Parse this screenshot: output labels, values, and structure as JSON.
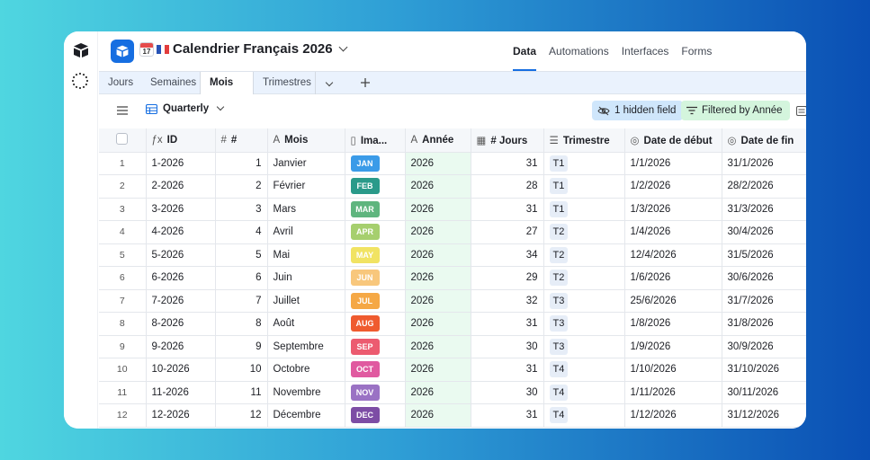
{
  "app": {
    "title": "Calendrier Français 2026",
    "cal_emoji_text": "17",
    "nav": [
      "Data",
      "Automations",
      "Interfaces",
      "Forms"
    ],
    "active_nav": "Data"
  },
  "tabs": [
    {
      "label": "Jours"
    },
    {
      "label": "Semaines"
    },
    {
      "label": "Mois"
    },
    {
      "label": "Trimestres"
    }
  ],
  "active_tab": "Mois",
  "toolbar": {
    "view_name": "Quarterly",
    "hidden_fields": "1 hidden field",
    "filter": "Filtered by Année"
  },
  "columns": [
    "ID",
    "#",
    "Mois",
    "Ima...",
    "Année",
    "# Jours",
    "Trimestre",
    "Date de début",
    "Date de fin"
  ],
  "rows": [
    {
      "n": "1",
      "id": "1-2026",
      "num": "1",
      "mois": "Janvier",
      "tag": "JAN",
      "annee": "2026",
      "jours": "31",
      "tri": "T1",
      "debut": "1/1/2026",
      "fin": "31/1/2026"
    },
    {
      "n": "2",
      "id": "2-2026",
      "num": "2",
      "mois": "Février",
      "tag": "FEB",
      "annee": "2026",
      "jours": "28",
      "tri": "T1",
      "debut": "1/2/2026",
      "fin": "28/2/2026"
    },
    {
      "n": "3",
      "id": "3-2026",
      "num": "3",
      "mois": "Mars",
      "tag": "MAR",
      "annee": "2026",
      "jours": "31",
      "tri": "T1",
      "debut": "1/3/2026",
      "fin": "31/3/2026"
    },
    {
      "n": "4",
      "id": "4-2026",
      "num": "4",
      "mois": "Avril",
      "tag": "APR",
      "annee": "2026",
      "jours": "27",
      "tri": "T2",
      "debut": "1/4/2026",
      "fin": "30/4/2026"
    },
    {
      "n": "5",
      "id": "5-2026",
      "num": "5",
      "mois": "Mai",
      "tag": "MAY",
      "annee": "2026",
      "jours": "34",
      "tri": "T2",
      "debut": "12/4/2026",
      "fin": "31/5/2026"
    },
    {
      "n": "6",
      "id": "6-2026",
      "num": "6",
      "mois": "Juin",
      "tag": "JUN",
      "annee": "2026",
      "jours": "29",
      "tri": "T2",
      "debut": "1/6/2026",
      "fin": "30/6/2026"
    },
    {
      "n": "7",
      "id": "7-2026",
      "num": "7",
      "mois": "Juillet",
      "tag": "JUL",
      "annee": "2026",
      "jours": "32",
      "tri": "T3",
      "debut": "25/6/2026",
      "fin": "31/7/2026"
    },
    {
      "n": "8",
      "id": "8-2026",
      "num": "8",
      "mois": "Août",
      "tag": "AUG",
      "annee": "2026",
      "jours": "31",
      "tri": "T3",
      "debut": "1/8/2026",
      "fin": "31/8/2026"
    },
    {
      "n": "9",
      "id": "9-2026",
      "num": "9",
      "mois": "Septembre",
      "tag": "SEP",
      "annee": "2026",
      "jours": "30",
      "tri": "T3",
      "debut": "1/9/2026",
      "fin": "30/9/2026"
    },
    {
      "n": "10",
      "id": "10-2026",
      "num": "10",
      "mois": "Octobre",
      "tag": "OCT",
      "annee": "2026",
      "jours": "31",
      "tri": "T4",
      "debut": "1/10/2026",
      "fin": "31/10/2026"
    },
    {
      "n": "11",
      "id": "11-2026",
      "num": "11",
      "mois": "Novembre",
      "tag": "NOV",
      "annee": "2026",
      "jours": "30",
      "tri": "T4",
      "debut": "1/11/2026",
      "fin": "30/11/2026"
    },
    {
      "n": "12",
      "id": "12-2026",
      "num": "12",
      "mois": "Décembre",
      "tag": "DEC",
      "annee": "2026",
      "jours": "31",
      "tri": "T4",
      "debut": "1/12/2026",
      "fin": "31/12/2026"
    }
  ],
  "colors": {
    "accent": "#166ee1",
    "tab_bar": "#eaf2fd",
    "hidden_pill": "#cfe6fb",
    "filter_pill": "#d4f5dd",
    "annee_cell": "#eafaf0",
    "tags": {
      "JAN": "#3b9be8",
      "FEB": "#2a9a8a",
      "MAR": "#5fb57e",
      "APR": "#a6cf6e",
      "MAY": "#f1e363",
      "JUN": "#f8c77c",
      "JUL": "#f5a845",
      "AUG": "#ef5b2f",
      "SEP": "#ec5b70",
      "OCT": "#e05aa0",
      "NOV": "#9a72c4",
      "DEC": "#7d4da5"
    }
  }
}
